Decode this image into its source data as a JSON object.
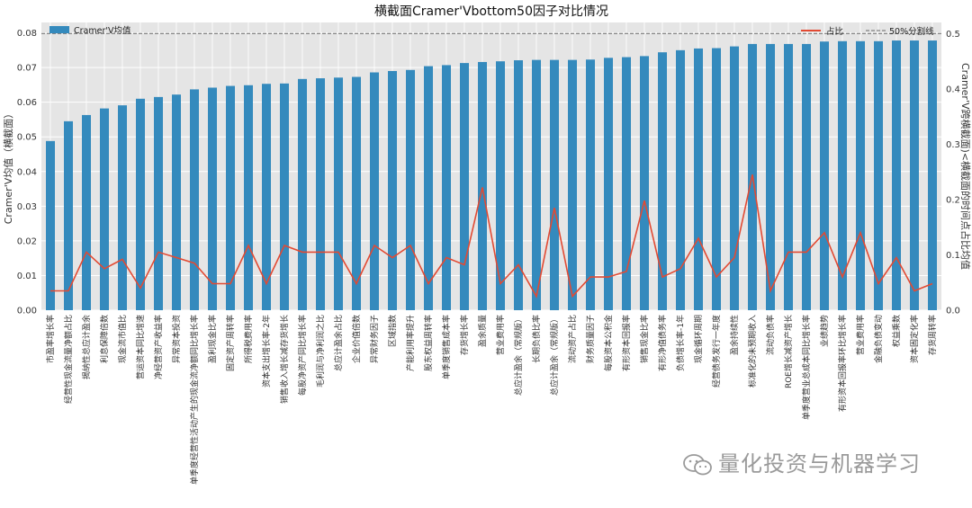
{
  "chart_data": {
    "type": "bar",
    "title": "横截面Cramer'Vbottom50因子对比情况",
    "ylabel_left": "Cramer'V均值（横截面）",
    "ylabel_right": "Cramer'V跨横截面)<横截面的时间点占比均值",
    "ylim_left": [
      0,
      0.083
    ],
    "ylim_right": [
      0,
      0.52
    ],
    "yticks_left": [
      "0.00",
      "0.01",
      "0.02",
      "0.03",
      "0.04",
      "0.05",
      "0.06",
      "0.07",
      "0.08"
    ],
    "yticks_right": [
      "0.0",
      "0.1",
      "0.2",
      "0.3",
      "0.4",
      "0.5"
    ],
    "grid": true,
    "legend_left": {
      "label": "Cramer'V均值",
      "placement": "top-left"
    },
    "legend_right": {
      "line_label": "占比",
      "ref_label": "50%分割线",
      "placement": "top-right"
    },
    "reference_line_value": 0.5,
    "categories": [
      "市盈率增长率",
      "经营性现金流量净额占比",
      "揭纳性总应计盈余",
      "利息保障倍数",
      "现金流市值比",
      "营运资本同比增速",
      "净经营资产收益率",
      "异常资本投资",
      "单季度经营性活动产生的现金流净额同比增长率",
      "盈利现金比率",
      "固定资产周转率",
      "所得税费用率",
      "资本支出增长率-2年",
      "销售收入增长减存货增长",
      "每股净资产同比增长率",
      "毛利润与净利润之比",
      "总应计盈余占比",
      "企业价值倍数",
      "异常财务因子",
      "区域指数",
      "产能利用率提升",
      "股东权益周转率",
      "单季度销售成本率",
      "存货增长率",
      "盈余质量",
      "营业费用率",
      "总应计盈余（常规版）",
      "长期负债比率",
      "总应计盈余（常规版）",
      "流动资产占比",
      "财务质量因子",
      "每股资本公积金",
      "有形资本回报率",
      "销售现金比率",
      "有形净值债务率",
      "负债增长率-1年",
      "现金循环周期",
      "经营债务发行一年度",
      "盈余持续性",
      "标准化的未预期收入",
      "流动负债率",
      "ROE增长减资产增长",
      "单季度营业总成本同比增长率",
      "业绩趋势",
      "有形资本回报率环比增长率",
      "营业费用率",
      "金融负债变动",
      "权益乘数",
      "资本固定化率",
      "存货周转率"
    ],
    "series": [
      {
        "name": "Cramer'V均值",
        "axis": "left",
        "type": "bar",
        "color": "#348abd",
        "values": [
          0.0488,
          0.0545,
          0.0563,
          0.0582,
          0.0591,
          0.061,
          0.0615,
          0.0622,
          0.0637,
          0.0642,
          0.0647,
          0.0649,
          0.0653,
          0.0654,
          0.0667,
          0.0669,
          0.0671,
          0.0673,
          0.0686,
          0.069,
          0.0693,
          0.0704,
          0.0707,
          0.0713,
          0.0716,
          0.0718,
          0.0721,
          0.0722,
          0.0722,
          0.0722,
          0.0723,
          0.0728,
          0.073,
          0.0733,
          0.0744,
          0.075,
          0.0755,
          0.0756,
          0.0761,
          0.0768,
          0.0768,
          0.0768,
          0.0768,
          0.0775,
          0.0776,
          0.0776,
          0.0776,
          0.0778,
          0.0778,
          0.0778
        ]
      },
      {
        "name": "占比",
        "axis": "right",
        "type": "line",
        "color": "#e24a33",
        "values": [
          0.035,
          0.035,
          0.105,
          0.075,
          0.092,
          0.04,
          0.105,
          0.095,
          0.085,
          0.048,
          0.048,
          0.117,
          0.048,
          0.117,
          0.105,
          0.105,
          0.105,
          0.048,
          0.117,
          0.095,
          0.117,
          0.048,
          0.095,
          0.082,
          0.222,
          0.048,
          0.082,
          0.025,
          0.185,
          0.025,
          0.06,
          0.06,
          0.07,
          0.198,
          0.06,
          0.075,
          0.13,
          0.06,
          0.095,
          0.245,
          0.035,
          0.105,
          0.105,
          0.14,
          0.06,
          0.14,
          0.048,
          0.095,
          0.035,
          0.048
        ]
      }
    ]
  },
  "watermark": {
    "text": "量化投资与机器学习",
    "icon": "wechat-icon"
  }
}
